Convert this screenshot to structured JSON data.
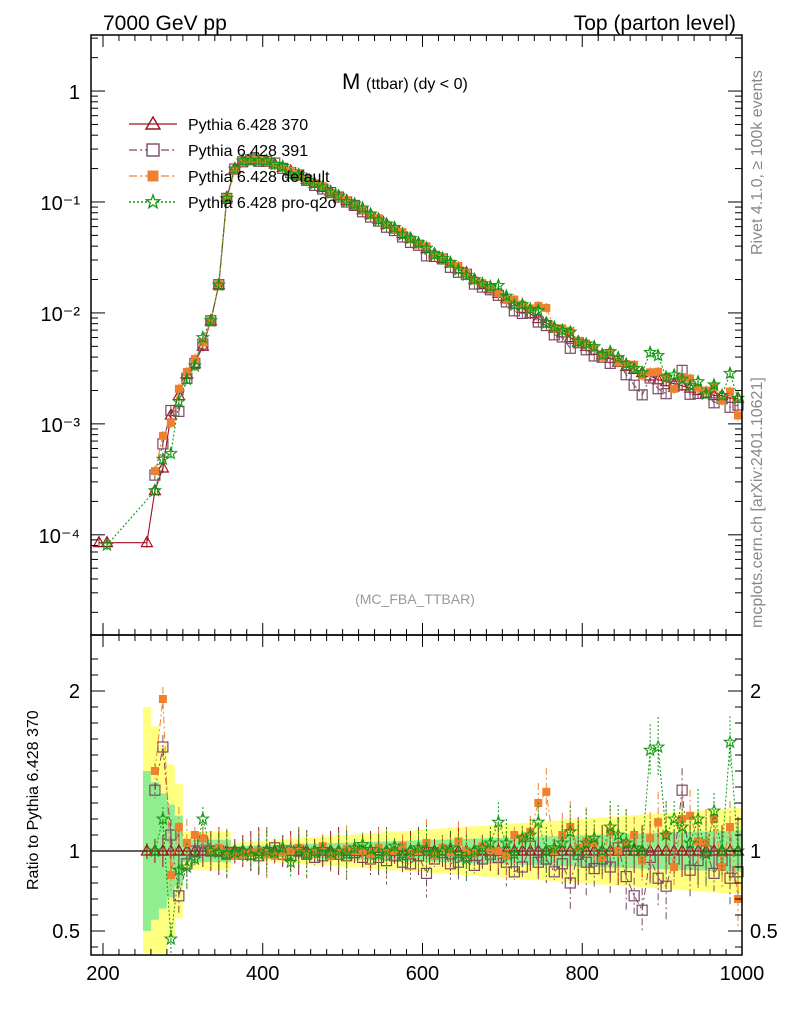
{
  "header": {
    "left": "7000 GeV pp",
    "right": "Top (parton level)"
  },
  "side_labels": {
    "rivet": "Rivet 4.1.0, ≥ 100k events",
    "mcplots": "mcplots.cern.ch [arXiv:2401.10621]"
  },
  "chart_data": {
    "type": "line",
    "title_main": "M",
    "title_sub": "(ttbar) (dy < 0)",
    "watermark": "(MC_FBA_TTBAR)",
    "xlabel": "",
    "ylabel_top": "",
    "ylabel_bottom": "Ratio to Pythia 6.428 370",
    "xlim": [
      185,
      1000
    ],
    "ylim_top": [
      1.25e-05,
      3.2
    ],
    "ylog_top": true,
    "ylim_bottom": [
      0.35,
      2.35
    ],
    "x_ticks": [
      "200",
      "400",
      "600",
      "800",
      "1000"
    ],
    "y_ticks_top": [
      "10⁻⁴",
      "10⁻³",
      "10⁻²",
      "10⁻¹",
      "1"
    ],
    "y_ticks_bottom": [
      "0.5",
      "1",
      "2"
    ],
    "legend_position": "top-left",
    "series": [
      {
        "name": "Pythia 6.428 370",
        "color": "#a01020",
        "marker": "triangle-open",
        "line": "solid",
        "values": []
      },
      {
        "name": "Pythia 6.428 391",
        "color": "#7a4a62",
        "marker": "square-open",
        "line": "dashdot",
        "values": []
      },
      {
        "name": "Pythia 6.428 default",
        "color": "#f08030",
        "marker": "square-filled",
        "line": "dashdot",
        "values": []
      },
      {
        "name": "Pythia 6.428 pro-q2o",
        "color": "#119911",
        "marker": "star-open",
        "line": "dotted",
        "values": []
      }
    ],
    "reference": {
      "x": [
        195,
        205,
        255,
        265,
        275,
        285,
        295,
        305,
        315,
        325,
        335,
        345,
        355,
        365,
        375,
        385,
        395,
        405,
        415,
        425,
        435,
        445,
        455,
        465,
        475,
        485,
        495,
        505,
        515,
        525,
        535,
        545,
        555,
        565,
        575,
        585,
        595,
        605,
        615,
        625,
        635,
        645,
        655,
        665,
        675,
        685,
        695,
        705,
        715,
        725,
        735,
        745,
        755,
        765,
        775,
        785,
        795,
        805,
        815,
        825,
        835,
        845,
        855,
        865,
        875,
        885,
        895,
        905,
        915,
        925,
        935,
        945,
        955,
        965,
        975,
        985,
        995
      ],
      "y": [
        8.5e-05,
        8.5e-05,
        8.5e-05,
        0.00025,
        0.0004,
        0.0012,
        0.0018,
        0.0028,
        0.0035,
        0.005,
        0.0085,
        0.018,
        0.11,
        0.2,
        0.235,
        0.245,
        0.24,
        0.235,
        0.22,
        0.205,
        0.19,
        0.175,
        0.16,
        0.147,
        0.135,
        0.124,
        0.113,
        0.103,
        0.094,
        0.085,
        0.077,
        0.07,
        0.063,
        0.057,
        0.052,
        0.047,
        0.042,
        0.038,
        0.034,
        0.031,
        0.028,
        0.025,
        0.023,
        0.02,
        0.018,
        0.0165,
        0.015,
        0.0135,
        0.012,
        0.011,
        0.0098,
        0.0089,
        0.0081,
        0.0073,
        0.0066,
        0.006,
        0.0055,
        0.005,
        0.0046,
        0.0042,
        0.0039,
        0.0036,
        0.0033,
        0.0031,
        0.0029,
        0.0027,
        0.0025,
        0.0024,
        0.0023,
        0.0022,
        0.0021,
        0.002,
        0.0019,
        0.0018,
        0.0018,
        0.0017,
        0.0017
      ]
    },
    "ratios": [
      [
        1,
        1,
        1,
        1,
        1,
        1,
        1,
        1,
        1,
        1,
        1,
        1,
        1,
        1,
        1,
        1,
        1,
        1,
        1,
        1,
        1,
        1,
        1,
        1,
        1,
        1,
        1,
        1,
        1,
        1,
        1,
        1,
        1,
        1,
        1,
        1,
        1,
        1,
        1,
        1,
        1,
        1,
        1,
        1,
        1,
        1,
        1,
        1,
        1,
        1,
        1,
        1,
        1,
        1,
        1,
        1,
        1,
        1,
        1,
        1,
        1,
        1,
        1,
        1,
        1,
        1,
        1,
        1,
        1,
        1,
        1,
        1,
        1,
        1,
        1,
        1,
        1
      ],
      [
        null,
        null,
        null,
        1.38,
        1.65,
        1.1,
        0.72,
        0.92,
        1.0,
        1.05,
        1.0,
        1.0,
        0.98,
        0.99,
        0.98,
        0.98,
        0.97,
        0.99,
        1.02,
        0.98,
        0.97,
        1.0,
        0.98,
        0.96,
        0.97,
        0.98,
        0.98,
        0.97,
        0.99,
        0.96,
        0.95,
        0.96,
        0.94,
        0.97,
        0.93,
        0.92,
        0.97,
        0.86,
        0.95,
        0.99,
        0.92,
        0.93,
        0.97,
        0.91,
        0.95,
        0.98,
        0.96,
        0.93,
        0.87,
        0.9,
        1.03,
        0.93,
        0.95,
        0.87,
        0.92,
        0.8,
        0.98,
        0.93,
        0.89,
        0.95,
        0.9,
        1.02,
        0.84,
        0.72,
        0.63,
        0.96,
        0.83,
        0.78,
        0.95,
        1.38,
        0.88,
        0.94,
        1.0,
        0.86,
        0.94,
        0.83,
        0.87
      ],
      [
        null,
        null,
        null,
        1.5,
        1.95,
        0.85,
        1.15,
        1.05,
        1.1,
        1.08,
        1.0,
        1.02,
        0.99,
        0.97,
        0.98,
        0.99,
        1.0,
        0.98,
        0.97,
        0.99,
        1.0,
        1.02,
        0.98,
        1.0,
        1.03,
        0.97,
        0.99,
        1.01,
        1.0,
        1.0,
        0.98,
        1.02,
        0.99,
        1.0,
        1.03,
        0.98,
        1.0,
        1.05,
        0.97,
        1.02,
        0.99,
        1.06,
        1.0,
        0.98,
        1.03,
        1.01,
        1.0,
        0.97,
        1.1,
        1.08,
        1.12,
        1.3,
        1.37,
        1.0,
        1.1,
        1.15,
        1.02,
        1.06,
        1.05,
        0.96,
        1.12,
        1.0,
        1.05,
        1.1,
        0.94,
        1.08,
        1.18,
        1.1,
        0.9,
        1.2,
        1.22,
        1.06,
        1.05,
        1.2,
        0.9,
        1.15,
        0.7
      ],
      [
        null,
        0.95,
        null,
        1.0,
        1.2,
        0.45,
        0.88,
        0.9,
        0.95,
        1.2,
        1.0,
        0.99,
        0.98,
        0.99,
        1.0,
        0.97,
        0.98,
        1.0,
        0.99,
        1.02,
        0.93,
        1.01,
        0.98,
        1.0,
        1.01,
        0.99,
        1.0,
        0.98,
        1.02,
        1.04,
        1.01,
        0.98,
        1.0,
        1.03,
        0.97,
        1.0,
        1.02,
        1.01,
        0.99,
        1.0,
        1.02,
        0.98,
        0.95,
        1.0,
        1.02,
        1.05,
        1.18,
        1.05,
        0.98,
        1.08,
        1.1,
        1.18,
        1.0,
        1.02,
        1.05,
        1.12,
        1.0,
        1.05,
        1.08,
        1.0,
        1.15,
        1.1,
        1.05,
        1.02,
        1.0,
        1.63,
        1.65,
        1.1,
        1.2,
        1.15,
        1.05,
        1.2,
        0.98,
        1.25,
        1.0,
        1.68,
        1.0
      ]
    ]
  }
}
